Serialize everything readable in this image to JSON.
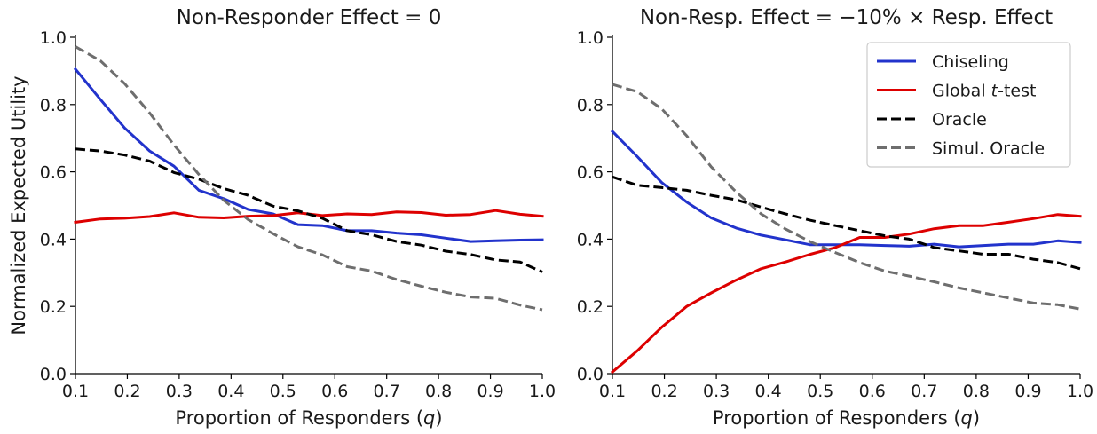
{
  "chart_data": [
    {
      "type": "line",
      "title": "Non-Responder Effect = 0",
      "xlabel": "Proportion of Responders (q)",
      "ylabel": "Normalized Expected Utility",
      "xlim": [
        0.1,
        1.0
      ],
      "ylim": [
        0.0,
        1.0
      ],
      "xticks": [
        "0.1",
        "0.2",
        "0.3",
        "0.4",
        "0.5",
        "0.6",
        "0.7",
        "0.8",
        "0.9",
        "1.0"
      ],
      "yticks": [
        "0.0",
        "0.2",
        "0.4",
        "0.6",
        "0.8",
        "1.0"
      ],
      "grid": false,
      "legend": null,
      "x": [
        0.1,
        0.148,
        0.195,
        0.243,
        0.29,
        0.338,
        0.386,
        0.433,
        0.481,
        0.529,
        0.576,
        0.624,
        0.671,
        0.719,
        0.767,
        0.814,
        0.862,
        0.91,
        0.957,
        1.0
      ],
      "series": [
        {
          "name": "Chiseling",
          "color": "#2233cc",
          "dash": "solid",
          "values": [
            0.905,
            0.815,
            0.73,
            0.662,
            0.617,
            0.545,
            0.52,
            0.488,
            0.475,
            0.443,
            0.44,
            0.425,
            0.425,
            0.418,
            0.413,
            0.403,
            0.393,
            0.395,
            0.397,
            0.398
          ]
        },
        {
          "name": "Global t-test",
          "color": "#dd0000",
          "dash": "solid",
          "values": [
            0.45,
            0.46,
            0.462,
            0.467,
            0.478,
            0.465,
            0.463,
            0.468,
            0.47,
            0.478,
            0.47,
            0.475,
            0.473,
            0.481,
            0.479,
            0.471,
            0.473,
            0.485,
            0.474,
            0.468
          ]
        },
        {
          "name": "Oracle",
          "color": "#000000",
          "dash": "dashed",
          "values": [
            0.668,
            0.662,
            0.65,
            0.632,
            0.598,
            0.578,
            0.55,
            0.53,
            0.498,
            0.484,
            0.462,
            0.425,
            0.413,
            0.393,
            0.382,
            0.364,
            0.354,
            0.338,
            0.332,
            0.302
          ]
        },
        {
          "name": "Simul. Oracle",
          "color": "#6e6e6e",
          "dash": "dashed",
          "values": [
            0.972,
            0.93,
            0.862,
            0.775,
            0.68,
            0.592,
            0.515,
            0.458,
            0.416,
            0.377,
            0.353,
            0.318,
            0.305,
            0.28,
            0.26,
            0.242,
            0.228,
            0.224,
            0.204,
            0.19
          ]
        }
      ]
    },
    {
      "type": "line",
      "title": "Non-Resp. Effect = −10% × Resp. Effect",
      "xlabel": "Proportion of Responders (q)",
      "ylabel": "",
      "xlim": [
        0.1,
        1.0
      ],
      "ylim": [
        0.0,
        1.0
      ],
      "xticks": [
        "0.1",
        "0.2",
        "0.3",
        "0.4",
        "0.5",
        "0.6",
        "0.7",
        "0.8",
        "0.9",
        "1.0"
      ],
      "yticks": [
        "0.0",
        "0.2",
        "0.4",
        "0.6",
        "0.8",
        "1.0"
      ],
      "grid": false,
      "legend": "top-right",
      "x": [
        0.1,
        0.148,
        0.195,
        0.243,
        0.29,
        0.338,
        0.386,
        0.433,
        0.481,
        0.529,
        0.576,
        0.624,
        0.671,
        0.719,
        0.767,
        0.814,
        0.862,
        0.91,
        0.957,
        1.0
      ],
      "series": [
        {
          "name": "Chiseling",
          "color": "#2233cc",
          "dash": "solid",
          "values": [
            0.72,
            0.645,
            0.568,
            0.51,
            0.463,
            0.433,
            0.412,
            0.398,
            0.383,
            0.383,
            0.383,
            0.381,
            0.379,
            0.385,
            0.377,
            0.381,
            0.385,
            0.385,
            0.395,
            0.39
          ]
        },
        {
          "name": "Global t-test",
          "color": "#dd0000",
          "dash": "solid",
          "values": [
            0.005,
            0.068,
            0.138,
            0.2,
            0.24,
            0.278,
            0.312,
            0.332,
            0.355,
            0.375,
            0.405,
            0.405,
            0.415,
            0.431,
            0.44,
            0.44,
            0.45,
            0.461,
            0.473,
            0.468
          ]
        },
        {
          "name": "Oracle",
          "color": "#000000",
          "dash": "dashed",
          "values": [
            0.585,
            0.56,
            0.553,
            0.545,
            0.53,
            0.517,
            0.495,
            0.475,
            0.456,
            0.44,
            0.425,
            0.41,
            0.4,
            0.375,
            0.365,
            0.355,
            0.355,
            0.34,
            0.33,
            0.312
          ]
        },
        {
          "name": "Simul. Oracle",
          "color": "#6e6e6e",
          "dash": "dashed",
          "values": [
            0.86,
            0.838,
            0.787,
            0.707,
            0.615,
            0.54,
            0.475,
            0.43,
            0.392,
            0.36,
            0.33,
            0.305,
            0.29,
            0.273,
            0.255,
            0.24,
            0.225,
            0.21,
            0.205,
            0.192
          ]
        }
      ]
    }
  ]
}
